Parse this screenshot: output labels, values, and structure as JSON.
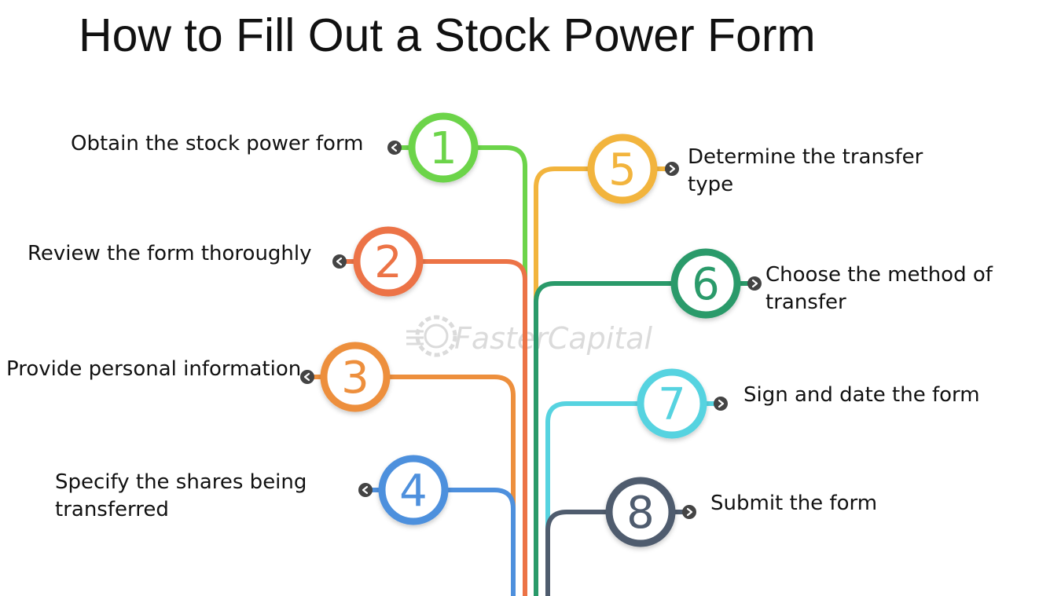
{
  "title": "How to Fill Out a Stock Power Form",
  "watermark": "FasterCapital",
  "steps": [
    {
      "number": "1",
      "label": "Obtain the stock power form",
      "color": "#6cd44a"
    },
    {
      "number": "2",
      "label": "Review the form thoroughly",
      "color": "#ec7346"
    },
    {
      "number": "3",
      "label": "Provide personal information",
      "color": "#ed8f3d"
    },
    {
      "number": "4",
      "label": "Specify the shares being transferred",
      "color": "#4e90dd"
    },
    {
      "number": "5",
      "label": "Determine the transfer type",
      "color": "#f2b43d"
    },
    {
      "number": "6",
      "label": "Choose the method of transfer",
      "color": "#2a9a6a"
    },
    {
      "number": "7",
      "label": "Sign and date the form",
      "color": "#56d3e0"
    },
    {
      "number": "8",
      "label": "Submit the form",
      "color": "#4f5c6e"
    }
  ],
  "icons": {
    "bullet": "chevron-bullet-icon",
    "watermark": "gear-logo-icon"
  }
}
